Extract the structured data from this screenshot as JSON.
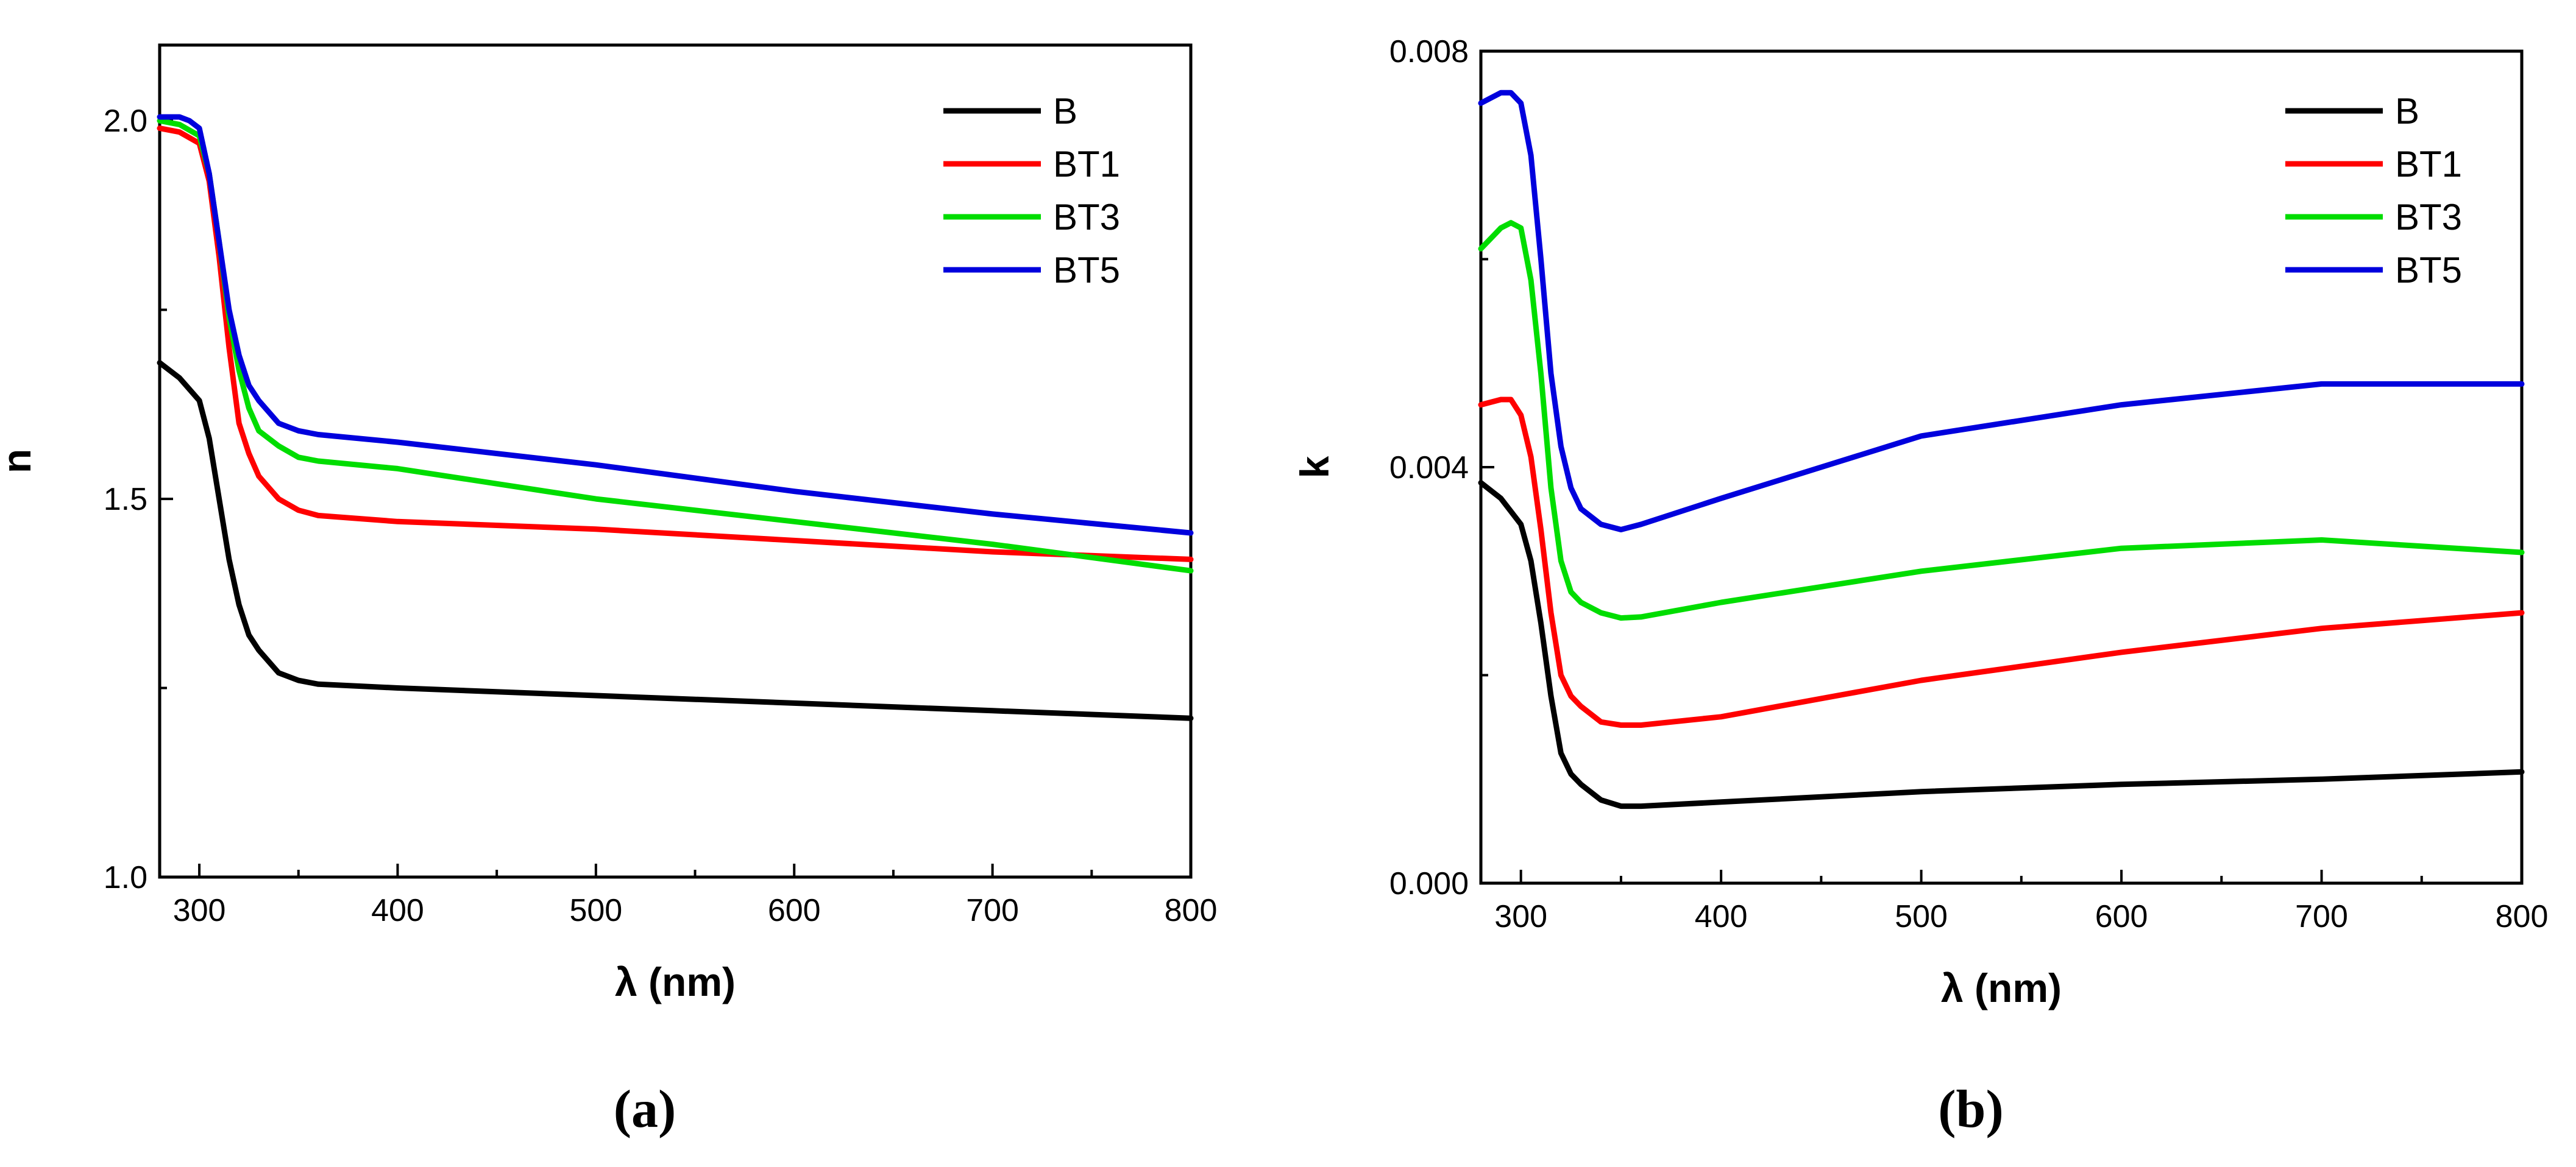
{
  "chart_data": [
    {
      "type": "line",
      "panel_label": "(a)",
      "xlabel": "λ (nm)",
      "ylabel": "n",
      "xlim": [
        280,
        800
      ],
      "ylim": [
        1.0,
        2.1
      ],
      "xticks": [
        300,
        400,
        500,
        600,
        700,
        800
      ],
      "xtick_labels": [
        "300",
        "400",
        "500",
        "600",
        "700",
        "800"
      ],
      "yticks": [
        1.0,
        1.5,
        2.0
      ],
      "ytick_labels": [
        "1.0",
        "1.5",
        "2.0"
      ],
      "legend_position": "top-right",
      "series": [
        {
          "name": "B",
          "color": "#000000",
          "x": [
            280,
            290,
            300,
            305,
            310,
            315,
            320,
            325,
            330,
            340,
            350,
            360,
            400,
            500,
            600,
            700,
            800
          ],
          "y": [
            1.68,
            1.66,
            1.63,
            1.58,
            1.5,
            1.42,
            1.36,
            1.32,
            1.3,
            1.27,
            1.26,
            1.255,
            1.25,
            1.24,
            1.23,
            1.22,
            1.21
          ]
        },
        {
          "name": "BT1",
          "color": "#ff0000",
          "x": [
            280,
            290,
            300,
            305,
            310,
            315,
            320,
            325,
            330,
            340,
            350,
            360,
            400,
            500,
            600,
            700,
            800
          ],
          "y": [
            1.99,
            1.985,
            1.97,
            1.92,
            1.82,
            1.7,
            1.6,
            1.56,
            1.53,
            1.5,
            1.485,
            1.478,
            1.47,
            1.46,
            1.445,
            1.43,
            1.42
          ]
        },
        {
          "name": "BT3",
          "color": "#00dd00",
          "x": [
            280,
            290,
            300,
            305,
            310,
            315,
            320,
            325,
            330,
            340,
            350,
            360,
            400,
            500,
            600,
            700,
            800
          ],
          "y": [
            2.0,
            1.995,
            1.98,
            1.93,
            1.84,
            1.74,
            1.67,
            1.62,
            1.59,
            1.57,
            1.555,
            1.55,
            1.54,
            1.5,
            1.47,
            1.44,
            1.405
          ]
        },
        {
          "name": "BT5",
          "color": "#0000dd",
          "x": [
            280,
            290,
            295,
            300,
            305,
            310,
            315,
            320,
            325,
            330,
            340,
            350,
            360,
            400,
            500,
            600,
            700,
            800
          ],
          "y": [
            2.005,
            2.005,
            2.0,
            1.99,
            1.93,
            1.84,
            1.75,
            1.69,
            1.65,
            1.63,
            1.6,
            1.59,
            1.585,
            1.575,
            1.545,
            1.51,
            1.48,
            1.455
          ]
        }
      ]
    },
    {
      "type": "line",
      "panel_label": "(b)",
      "xlabel": "λ (nm)",
      "ylabel": "k",
      "xlim": [
        280,
        800
      ],
      "ylim": [
        0.0,
        0.008
      ],
      "xticks": [
        300,
        400,
        500,
        600,
        700,
        800
      ],
      "xtick_labels": [
        "300",
        "400",
        "500",
        "600",
        "700",
        "800"
      ],
      "yticks": [
        0.0,
        0.004,
        0.008
      ],
      "ytick_labels": [
        "0.000",
        "0.004",
        "0.008"
      ],
      "legend_position": "top-right",
      "series": [
        {
          "name": "B",
          "color": "#000000",
          "x": [
            280,
            290,
            300,
            305,
            310,
            315,
            320,
            325,
            330,
            340,
            350,
            360,
            400,
            500,
            600,
            700,
            800
          ],
          "y": [
            0.00385,
            0.0037,
            0.00345,
            0.0031,
            0.0025,
            0.0018,
            0.00125,
            0.00105,
            0.00095,
            0.0008,
            0.00074,
            0.00074,
            0.00078,
            0.00088,
            0.00095,
            0.001,
            0.00107
          ]
        },
        {
          "name": "BT1",
          "color": "#ff0000",
          "x": [
            280,
            290,
            295,
            300,
            305,
            310,
            315,
            320,
            325,
            330,
            340,
            350,
            360,
            400,
            500,
            600,
            700,
            800
          ],
          "y": [
            0.0046,
            0.00465,
            0.00465,
            0.0045,
            0.0041,
            0.0034,
            0.0026,
            0.002,
            0.0018,
            0.0017,
            0.00155,
            0.00152,
            0.00152,
            0.0016,
            0.00195,
            0.00222,
            0.00245,
            0.0026
          ]
        },
        {
          "name": "BT3",
          "color": "#00dd00",
          "x": [
            280,
            290,
            295,
            300,
            305,
            310,
            315,
            320,
            325,
            330,
            340,
            350,
            360,
            400,
            500,
            600,
            700,
            800
          ],
          "y": [
            0.0061,
            0.0063,
            0.00635,
            0.0063,
            0.0058,
            0.0049,
            0.0038,
            0.0031,
            0.0028,
            0.0027,
            0.0026,
            0.00255,
            0.00256,
            0.0027,
            0.003,
            0.00322,
            0.0033,
            0.00318
          ]
        },
        {
          "name": "BT5",
          "color": "#0000dd",
          "x": [
            280,
            290,
            295,
            300,
            305,
            310,
            315,
            320,
            325,
            330,
            340,
            350,
            360,
            400,
            500,
            600,
            700,
            800
          ],
          "y": [
            0.0075,
            0.0076,
            0.0076,
            0.0075,
            0.007,
            0.006,
            0.0049,
            0.0042,
            0.0038,
            0.0036,
            0.00345,
            0.0034,
            0.00345,
            0.0037,
            0.0043,
            0.0046,
            0.0048,
            0.0048
          ]
        }
      ]
    }
  ]
}
